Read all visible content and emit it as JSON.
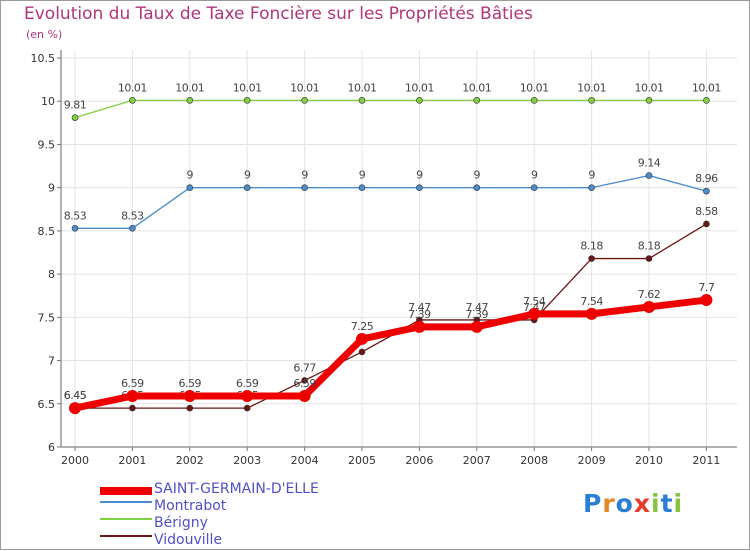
{
  "chart_data": {
    "type": "line",
    "title": "Evolution du Taux de Taxe Foncière sur les Propriétés Bâties",
    "ylabel": "(en %)",
    "xlabel": "",
    "categories": [
      "2000",
      "2001",
      "2002",
      "2003",
      "2004",
      "2005",
      "2006",
      "2007",
      "2008",
      "2009",
      "2010",
      "2011"
    ],
    "ylim": [
      6,
      10.5
    ],
    "yticks": [
      "6",
      "6.5",
      "7",
      "7.5",
      "8",
      "8.5",
      "9",
      "9.5",
      "10",
      "10.5"
    ],
    "series": [
      {
        "name": "Vidouville",
        "color": "#6b1515",
        "values": [
          6.45,
          6.45,
          6.45,
          6.45,
          6.77,
          7.1,
          7.47,
          7.47,
          7.47,
          8.18,
          8.18,
          8.58
        ],
        "labels": [
          "6.45",
          "6.45",
          "6.45",
          "6.45",
          "6.77",
          "",
          "7.47",
          "7.47",
          "7.47",
          "8.18",
          "8.18",
          "8.58"
        ]
      },
      {
        "name": "Bérigny",
        "color": "#80d040",
        "values": [
          9.81,
          10.01,
          10.01,
          10.01,
          10.01,
          10.01,
          10.01,
          10.01,
          10.01,
          10.01,
          10.01,
          10.01
        ],
        "labels": [
          "9.81",
          "10.01",
          "10.01",
          "10.01",
          "10.01",
          "10.01",
          "10.01",
          "10.01",
          "10.01",
          "10.01",
          "10.01",
          "10.01"
        ]
      },
      {
        "name": "Montrabot",
        "color": "#4a8ccc",
        "values": [
          8.53,
          8.53,
          9,
          9,
          9,
          9,
          9,
          9,
          9,
          9,
          9.14,
          8.96
        ],
        "labels": [
          "8.53",
          "8.53",
          "9",
          "9",
          "9",
          "9",
          "9",
          "9",
          "9",
          "9",
          "9.14",
          "8.96"
        ]
      },
      {
        "name": "SAINT-GERMAIN-D'ELLE",
        "color": "#ee0000",
        "values": [
          6.45,
          6.59,
          6.59,
          6.59,
          6.59,
          7.25,
          7.39,
          7.39,
          7.54,
          7.54,
          7.62,
          7.7
        ],
        "labels": [
          "6.45",
          "6.59",
          "6.59",
          "6.59",
          "6.59",
          "7.25",
          "7.39",
          "7.39",
          "7.54",
          "7.54",
          "7.62",
          "7.7"
        ]
      }
    ],
    "legend": [
      "SAINT-GERMAIN-D'ELLE",
      "Montrabot",
      "Bérigny",
      "Vidouville"
    ],
    "legend_placement": "bottom-left"
  },
  "logo": {
    "letters": [
      "P",
      "r",
      "o",
      "x",
      "i",
      "t",
      "i"
    ],
    "colors": [
      "#2a7fd4",
      "#e8862a",
      "#2a7fd4",
      "#e83a2a",
      "#86c340",
      "#2a7fd4",
      "#86c340"
    ]
  }
}
